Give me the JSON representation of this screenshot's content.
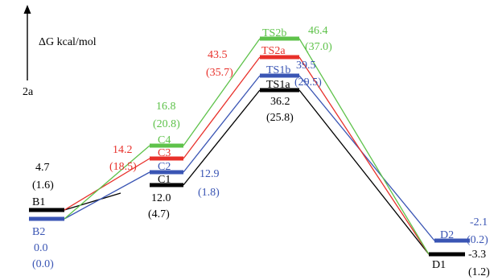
{
  "colors": {
    "black": "#000000",
    "red": "#e8302a",
    "green": "#5ec24a",
    "blue": "#3a55b4"
  },
  "header": {
    "axis_label": "ΔG kcal/mol",
    "system_label": "2a"
  },
  "states": [
    {
      "id": "B1",
      "label": "B1",
      "color": "black"
    },
    {
      "id": "B2",
      "label": "B2",
      "color": "blue"
    },
    {
      "id": "C1",
      "label": "C1",
      "color": "black"
    },
    {
      "id": "C2",
      "label": "C2",
      "color": "blue"
    },
    {
      "id": "C3",
      "label": "C3",
      "color": "red"
    },
    {
      "id": "C4",
      "label": "C4",
      "color": "green"
    },
    {
      "id": "TS1a",
      "label": "TS1a",
      "color": "black"
    },
    {
      "id": "TS1b",
      "label": "TS1b",
      "color": "blue"
    },
    {
      "id": "TS2a",
      "label": "TS2a",
      "color": "red"
    },
    {
      "id": "TS2b",
      "label": "TS2b",
      "color": "green"
    },
    {
      "id": "D1",
      "label": "D1",
      "color": "black"
    },
    {
      "id": "D2",
      "label": "D2",
      "color": "blue"
    }
  ],
  "energies": {
    "B1": {
      "value": "4.7",
      "paren": "(1.6)"
    },
    "B2": {
      "value": "0.0",
      "paren": "(0.0)"
    },
    "C1": {
      "value": "12.0",
      "paren": "(4.7)"
    },
    "C2": {
      "value": "12.9",
      "paren": "(1.8)"
    },
    "C3": {
      "value": "14.2",
      "paren": "(18.5)"
    },
    "C4": {
      "value": "16.8",
      "paren": "(20.8)"
    },
    "TS1a": {
      "value": "36.2",
      "paren": "(25.8)"
    },
    "TS1b": {
      "value": "39.5",
      "paren": "(29.5)"
    },
    "TS2a": {
      "value": "43.5",
      "paren": "(35.7)"
    },
    "TS2b": {
      "value": "46.4",
      "paren": "(37.0)"
    },
    "D1": {
      "value": "-3.3",
      "paren": "(1.2)"
    },
    "D2": {
      "value": "-2.1",
      "paren": "(0.2)"
    }
  },
  "pathways": [
    {
      "name": "TS1a",
      "color": "black",
      "states": [
        "B1",
        "C1",
        "TS1a",
        "D1"
      ]
    },
    {
      "name": "TS1b",
      "color": "blue",
      "states": [
        "B2",
        "C2",
        "TS1b",
        "D2"
      ]
    },
    {
      "name": "TS2a",
      "color": "red",
      "states": [
        "B1",
        "C3",
        "TS2a",
        "D1"
      ]
    },
    {
      "name": "TS2b",
      "color": "green",
      "states": [
        "B2",
        "C4",
        "TS2b",
        "D1"
      ]
    }
  ]
}
